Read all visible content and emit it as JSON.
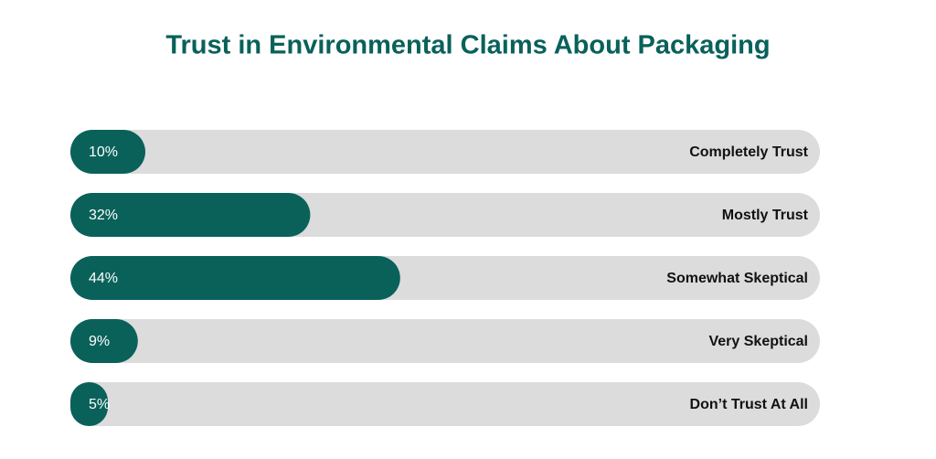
{
  "chart_data": {
    "type": "bar",
    "orientation": "horizontal",
    "title": "Trust in Environmental Claims About Packaging",
    "categories": [
      "Completely Trust",
      "Mostly Trust",
      "Somewhat Skeptical",
      "Very Skeptical",
      "Don’t Trust At All"
    ],
    "values": [
      10,
      32,
      44,
      9,
      5
    ],
    "value_labels": [
      "10%",
      "32%",
      "44%",
      "9%",
      "5%"
    ],
    "color": "#09615a",
    "track_color": "#dcdcdc",
    "xlim": [
      0,
      100
    ]
  }
}
